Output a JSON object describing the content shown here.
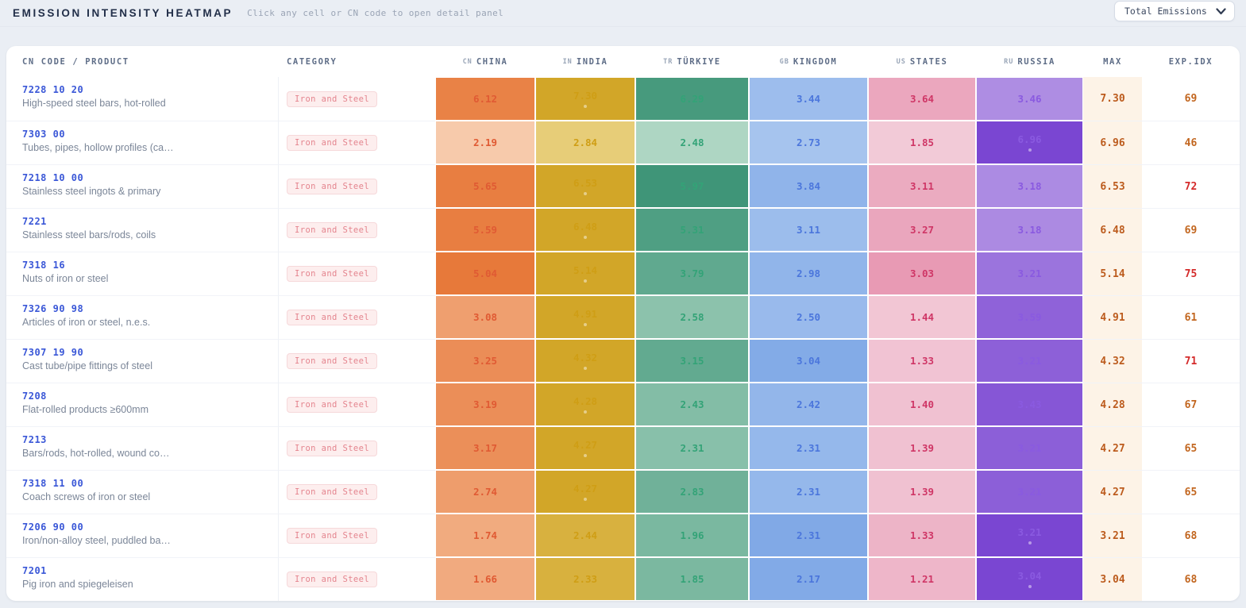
{
  "header": {
    "title": "EMISSION INTENSITY HEATMAP",
    "subtitle": "Click any cell or CN code to open detail panel",
    "filter": {
      "value": "Total Emissions"
    }
  },
  "table": {
    "columns": {
      "product": "CN CODE / PRODUCT",
      "category": "CATEGORY",
      "max": "MAX",
      "exp_idx": "EXP.IDX"
    },
    "countries": [
      {
        "key": "china",
        "prefix": "CN",
        "label": "CHINA"
      },
      {
        "key": "india",
        "prefix": "IN",
        "label": "INDIA"
      },
      {
        "key": "turkiye",
        "prefix": "TR",
        "label": "TÜRKIYE"
      },
      {
        "key": "kingdom",
        "prefix": "GB",
        "label": "KINGDOM"
      },
      {
        "key": "states",
        "prefix": "US",
        "label": "STATES"
      },
      {
        "key": "russia",
        "prefix": "RU",
        "label": "RUSSIA"
      }
    ],
    "rows": [
      {
        "code": "7228 10 20",
        "product": "High-speed steel bars, hot-rolled",
        "category": "Iron and Steel",
        "values": {
          "china": 6.12,
          "india": 7.3,
          "turkiye": 6.29,
          "kingdom": 3.44,
          "states": 3.64,
          "russia": 3.46
        },
        "max": 7.3,
        "exp_idx": 69
      },
      {
        "code": "7303 00",
        "product": "Tubes, pipes, hollow profiles (ca…",
        "category": "Iron and Steel",
        "values": {
          "china": 2.19,
          "india": 2.84,
          "turkiye": 2.48,
          "kingdom": 2.73,
          "states": 1.85,
          "russia": 6.96
        },
        "max": 6.96,
        "exp_idx": 46
      },
      {
        "code": "7218 10 00",
        "product": "Stainless steel ingots & primary",
        "category": "Iron and Steel",
        "values": {
          "china": 5.65,
          "india": 6.53,
          "turkiye": 5.97,
          "kingdom": 3.84,
          "states": 3.11,
          "russia": 3.18
        },
        "max": 6.53,
        "exp_idx": 72
      },
      {
        "code": "7221",
        "product": "Stainless steel bars/rods, coils",
        "category": "Iron and Steel",
        "values": {
          "china": 5.59,
          "india": 6.48,
          "turkiye": 5.31,
          "kingdom": 3.11,
          "states": 3.27,
          "russia": 3.18
        },
        "max": 6.48,
        "exp_idx": 69
      },
      {
        "code": "7318 16",
        "product": "Nuts of iron or steel",
        "category": "Iron and Steel",
        "values": {
          "china": 5.04,
          "india": 5.14,
          "turkiye": 3.79,
          "kingdom": 2.98,
          "states": 3.03,
          "russia": 3.21
        },
        "max": 5.14,
        "exp_idx": 75
      },
      {
        "code": "7326 90 98",
        "product": "Articles of iron or steel, n.e.s.",
        "category": "Iron and Steel",
        "values": {
          "china": 3.08,
          "india": 4.91,
          "turkiye": 2.58,
          "kingdom": 2.5,
          "states": 1.44,
          "russia": 3.59
        },
        "max": 4.91,
        "exp_idx": 61
      },
      {
        "code": "7307 19 90",
        "product": "Cast tube/pipe fittings of steel",
        "category": "Iron and Steel",
        "values": {
          "china": 3.25,
          "india": 4.32,
          "turkiye": 3.15,
          "kingdom": 3.04,
          "states": 1.33,
          "russia": 3.21
        },
        "max": 4.32,
        "exp_idx": 71
      },
      {
        "code": "7208",
        "product": "Flat-rolled products ≥600mm",
        "category": "Iron and Steel",
        "values": {
          "china": 3.19,
          "india": 4.28,
          "turkiye": 2.43,
          "kingdom": 2.42,
          "states": 1.4,
          "russia": 3.43
        },
        "max": 4.28,
        "exp_idx": 67
      },
      {
        "code": "7213",
        "product": "Bars/rods, hot-rolled, wound co…",
        "category": "Iron and Steel",
        "values": {
          "china": 3.17,
          "india": 4.27,
          "turkiye": 2.31,
          "kingdom": 2.31,
          "states": 1.39,
          "russia": 3.21
        },
        "max": 4.27,
        "exp_idx": 65
      },
      {
        "code": "7318 11 00",
        "product": "Coach screws of iron or steel",
        "category": "Iron and Steel",
        "values": {
          "china": 2.74,
          "india": 4.27,
          "turkiye": 2.83,
          "kingdom": 2.31,
          "states": 1.39,
          "russia": 3.21
        },
        "max": 4.27,
        "exp_idx": 65
      },
      {
        "code": "7206 90 00",
        "product": "Iron/non-alloy steel, puddled ba…",
        "category": "Iron and Steel",
        "values": {
          "china": 1.74,
          "india": 2.44,
          "turkiye": 1.96,
          "kingdom": 2.31,
          "states": 1.33,
          "russia": 3.21
        },
        "max": 3.21,
        "exp_idx": 68
      },
      {
        "code": "7201",
        "product": "Pig iron and spiegeleisen",
        "category": "Iron and Steel",
        "values": {
          "china": 1.66,
          "india": 2.33,
          "turkiye": 1.85,
          "kingdom": 2.17,
          "states": 1.21,
          "russia": 3.04
        },
        "max": 3.04,
        "exp_idx": 68
      }
    ]
  },
  "colors": {
    "china": {
      "light": "#f9d3b8",
      "strong": "#e7793a",
      "text": "#e05a33"
    },
    "india": {
      "light": "#eeda92",
      "strong": "#d2a628",
      "text": "#cf9e15"
    },
    "turkiye": {
      "light": "#c4e3d2",
      "strong": "#3f9578",
      "text": "#33a377"
    },
    "kingdom": {
      "light": "#b6cff2",
      "strong": "#6d9be2",
      "text": "#4b76dc"
    },
    "states": {
      "light": "#f3ccd9",
      "strong": "#dd6c92",
      "text": "#cf3666"
    },
    "russia": {
      "light": "#c9b2ec",
      "strong": "#7a46d2",
      "text": "#8a5ae0"
    },
    "max_text": "#bc5b1d",
    "max_bg": "#fdf3e7",
    "exp_normal": "#c2661f",
    "exp_high": "#d42a2a"
  },
  "chart_data": {
    "type": "heatmap",
    "title": "Emission Intensity Heatmap",
    "x_labels": [
      "CN CHINA",
      "IN INDIA",
      "TR TÜRKIYE",
      "GB KINGDOM",
      "US STATES",
      "RU RUSSIA"
    ],
    "y_labels": [
      "7228 10 20",
      "7303 00",
      "7218 10 00",
      "7221",
      "7318 16",
      "7326 90 98",
      "7307 19 90",
      "7208",
      "7213",
      "7318 11 00",
      "7206 90 00",
      "7201"
    ],
    "values": [
      [
        6.12,
        7.3,
        6.29,
        3.44,
        3.64,
        3.46
      ],
      [
        2.19,
        2.84,
        2.48,
        2.73,
        1.85,
        6.96
      ],
      [
        5.65,
        6.53,
        5.97,
        3.84,
        3.11,
        3.18
      ],
      [
        5.59,
        6.48,
        5.31,
        3.11,
        3.27,
        3.18
      ],
      [
        5.04,
        5.14,
        3.79,
        2.98,
        3.03,
        3.21
      ],
      [
        3.08,
        4.91,
        2.58,
        2.5,
        1.44,
        3.59
      ],
      [
        3.25,
        4.32,
        3.15,
        3.04,
        1.33,
        3.21
      ],
      [
        3.19,
        4.28,
        2.43,
        2.42,
        1.4,
        3.43
      ],
      [
        3.17,
        4.27,
        2.31,
        2.31,
        1.39,
        3.21
      ],
      [
        2.74,
        4.27,
        2.83,
        2.31,
        1.39,
        3.21
      ],
      [
        1.74,
        2.44,
        1.96,
        2.31,
        1.33,
        3.21
      ],
      [
        1.66,
        2.33,
        1.85,
        2.17,
        1.21,
        3.04
      ]
    ],
    "row_max": [
      7.3,
      6.96,
      6.53,
      6.48,
      5.14,
      4.91,
      4.32,
      4.28,
      4.27,
      4.27,
      3.21,
      3.04
    ],
    "row_exp_idx": [
      69,
      46,
      72,
      69,
      75,
      61,
      71,
      67,
      65,
      65,
      68,
      68
    ],
    "legend_position": "none"
  }
}
